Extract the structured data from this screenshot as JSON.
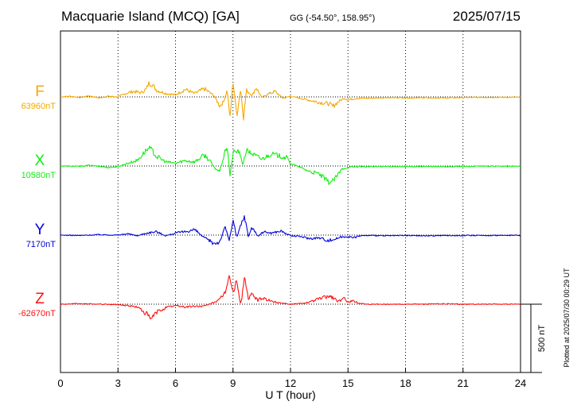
{
  "header": {
    "title": "Macquarie Island (MCQ)  [GA]",
    "coords": "GG (-54.50°, 158.95°)",
    "date": "2025/07/15"
  },
  "footer": {
    "plotted": "Plotted at 2025/07/30 00:29 UT"
  },
  "chart_data": {
    "type": "line",
    "xlabel": "U T (hour)",
    "xlim": [
      0,
      24
    ],
    "xticks": [
      0,
      3,
      6,
      9,
      12,
      15,
      18,
      21,
      24
    ],
    "scale_bar_label": "500 nT",
    "scale_bar_nT": 500,
    "series": [
      {
        "name": "F",
        "baseline_label": "63960nT",
        "color": "#f5a800",
        "points": [
          [
            0,
            0
          ],
          [
            0.5,
            5
          ],
          [
            1,
            -5
          ],
          [
            1.5,
            8
          ],
          [
            2,
            -8
          ],
          [
            2.5,
            5
          ],
          [
            3,
            0
          ],
          [
            3.4,
            25
          ],
          [
            3.8,
            40
          ],
          [
            4.2,
            30
          ],
          [
            4.5,
            60
          ],
          [
            4.6,
            100
          ],
          [
            4.8,
            90
          ],
          [
            5,
            50
          ],
          [
            5.5,
            25
          ],
          [
            6,
            15
          ],
          [
            6.5,
            55
          ],
          [
            7,
            25
          ],
          [
            7.5,
            60
          ],
          [
            7.8,
            30
          ],
          [
            8,
            10
          ],
          [
            8.3,
            -65
          ],
          [
            8.5,
            -40
          ],
          [
            8.7,
            50
          ],
          [
            8.85,
            -160
          ],
          [
            9,
            120
          ],
          [
            9.2,
            -140
          ],
          [
            9.4,
            60
          ],
          [
            9.55,
            -155
          ],
          [
            9.7,
            50
          ],
          [
            10,
            10
          ],
          [
            10.2,
            70
          ],
          [
            10.5,
            -5
          ],
          [
            10.8,
            20
          ],
          [
            11.2,
            40
          ],
          [
            11.6,
            -10
          ],
          [
            12,
            5
          ],
          [
            12.5,
            -10
          ],
          [
            13,
            -25
          ],
          [
            13.5,
            -40
          ],
          [
            14,
            -50
          ],
          [
            14.2,
            -70
          ],
          [
            14.5,
            -35
          ],
          [
            14.8,
            -10
          ],
          [
            15,
            -20
          ],
          [
            15.5,
            -10
          ],
          [
            16,
            -10
          ],
          [
            17,
            -5
          ],
          [
            18,
            -8
          ],
          [
            19,
            -5
          ],
          [
            20,
            -8
          ],
          [
            21,
            -5
          ],
          [
            22,
            -3
          ],
          [
            23,
            -3
          ],
          [
            24,
            -3
          ]
        ]
      },
      {
        "name": "X",
        "baseline_label": "10580nT",
        "color": "#11ee11",
        "points": [
          [
            0,
            0
          ],
          [
            1,
            -3
          ],
          [
            1.5,
            5
          ],
          [
            2,
            -3
          ],
          [
            2.5,
            -10
          ],
          [
            3,
            -5
          ],
          [
            3.5,
            20
          ],
          [
            4,
            40
          ],
          [
            4.5,
            120
          ],
          [
            4.7,
            130
          ],
          [
            5,
            70
          ],
          [
            5.5,
            30
          ],
          [
            6,
            20
          ],
          [
            6.5,
            40
          ],
          [
            7,
            30
          ],
          [
            7.5,
            80
          ],
          [
            7.8,
            40
          ],
          [
            8,
            -10
          ],
          [
            8.3,
            -40
          ],
          [
            8.5,
            60
          ],
          [
            8.7,
            150
          ],
          [
            8.85,
            -80
          ],
          [
            9,
            100
          ],
          [
            9.3,
            110
          ],
          [
            9.5,
            10
          ],
          [
            9.7,
            115
          ],
          [
            10,
            90
          ],
          [
            10.5,
            50
          ],
          [
            11,
            90
          ],
          [
            11.5,
            70
          ],
          [
            11.8,
            60
          ],
          [
            12,
            20
          ],
          [
            12.5,
            -10
          ],
          [
            13,
            -40
          ],
          [
            13.5,
            -60
          ],
          [
            14,
            -120
          ],
          [
            14.2,
            -110
          ],
          [
            14.4,
            -80
          ],
          [
            14.7,
            -20
          ],
          [
            15,
            -10
          ],
          [
            15.5,
            -5
          ],
          [
            16,
            -5
          ],
          [
            17,
            -3
          ],
          [
            18,
            -5
          ],
          [
            19,
            -3
          ],
          [
            20,
            -5
          ],
          [
            21,
            -3
          ],
          [
            22,
            -2
          ],
          [
            23,
            -2
          ],
          [
            24,
            -2
          ]
        ]
      },
      {
        "name": "Y",
        "baseline_label": "7170nT",
        "color": "#0000dd",
        "points": [
          [
            0,
            0
          ],
          [
            1,
            -3
          ],
          [
            2,
            3
          ],
          [
            3,
            0
          ],
          [
            3.5,
            10
          ],
          [
            4,
            -5
          ],
          [
            4.5,
            15
          ],
          [
            5,
            25
          ],
          [
            5.5,
            -5
          ],
          [
            6,
            15
          ],
          [
            6.5,
            25
          ],
          [
            7,
            40
          ],
          [
            7.5,
            -20
          ],
          [
            8,
            -60
          ],
          [
            8.3,
            -50
          ],
          [
            8.6,
            60
          ],
          [
            8.8,
            -40
          ],
          [
            9,
            110
          ],
          [
            9.2,
            -20
          ],
          [
            9.4,
            70
          ],
          [
            9.6,
            140
          ],
          [
            9.8,
            -10
          ],
          [
            10,
            60
          ],
          [
            10.3,
            -10
          ],
          [
            10.6,
            25
          ],
          [
            11,
            15
          ],
          [
            11.5,
            30
          ],
          [
            12,
            -5
          ],
          [
            12.5,
            -10
          ],
          [
            13,
            -25
          ],
          [
            13.5,
            -20
          ],
          [
            14,
            -40
          ],
          [
            14.3,
            -30
          ],
          [
            14.6,
            -15
          ],
          [
            15,
            -10
          ],
          [
            15.3,
            -20
          ],
          [
            15.6,
            -5
          ],
          [
            16,
            -3
          ],
          [
            17,
            -5
          ],
          [
            18,
            -3
          ],
          [
            19,
            -5
          ],
          [
            20,
            -3
          ],
          [
            21,
            -3
          ],
          [
            22,
            -3
          ],
          [
            23,
            -2
          ],
          [
            24,
            -2
          ]
        ]
      },
      {
        "name": "Z",
        "baseline_label": "-62670nT",
        "color": "#ff1111",
        "points": [
          [
            0,
            0
          ],
          [
            1,
            3
          ],
          [
            2,
            0
          ],
          [
            3,
            -3
          ],
          [
            3.5,
            -10
          ],
          [
            4,
            -20
          ],
          [
            4.5,
            -70
          ],
          [
            4.7,
            -110
          ],
          [
            5,
            -60
          ],
          [
            5.5,
            -25
          ],
          [
            6,
            -10
          ],
          [
            6.5,
            -20
          ],
          [
            7,
            -15
          ],
          [
            7.5,
            -15
          ],
          [
            8,
            15
          ],
          [
            8.3,
            30
          ],
          [
            8.6,
            90
          ],
          [
            8.8,
            215
          ],
          [
            9,
            80
          ],
          [
            9.2,
            180
          ],
          [
            9.4,
            -10
          ],
          [
            9.6,
            200
          ],
          [
            9.8,
            40
          ],
          [
            10,
            70
          ],
          [
            10.3,
            30
          ],
          [
            10.6,
            45
          ],
          [
            11,
            20
          ],
          [
            11.5,
            10
          ],
          [
            12,
            0
          ],
          [
            12.5,
            5
          ],
          [
            13,
            15
          ],
          [
            13.5,
            40
          ],
          [
            14,
            60
          ],
          [
            14.2,
            50
          ],
          [
            14.5,
            20
          ],
          [
            14.8,
            40
          ],
          [
            15,
            20
          ],
          [
            15.3,
            25
          ],
          [
            15.5,
            10
          ],
          [
            16,
            0
          ],
          [
            17,
            0
          ],
          [
            18,
            0
          ],
          [
            19,
            0
          ],
          [
            20,
            3
          ],
          [
            21,
            0
          ],
          [
            22,
            0
          ],
          [
            23,
            0
          ],
          [
            24,
            0
          ]
        ]
      }
    ]
  }
}
